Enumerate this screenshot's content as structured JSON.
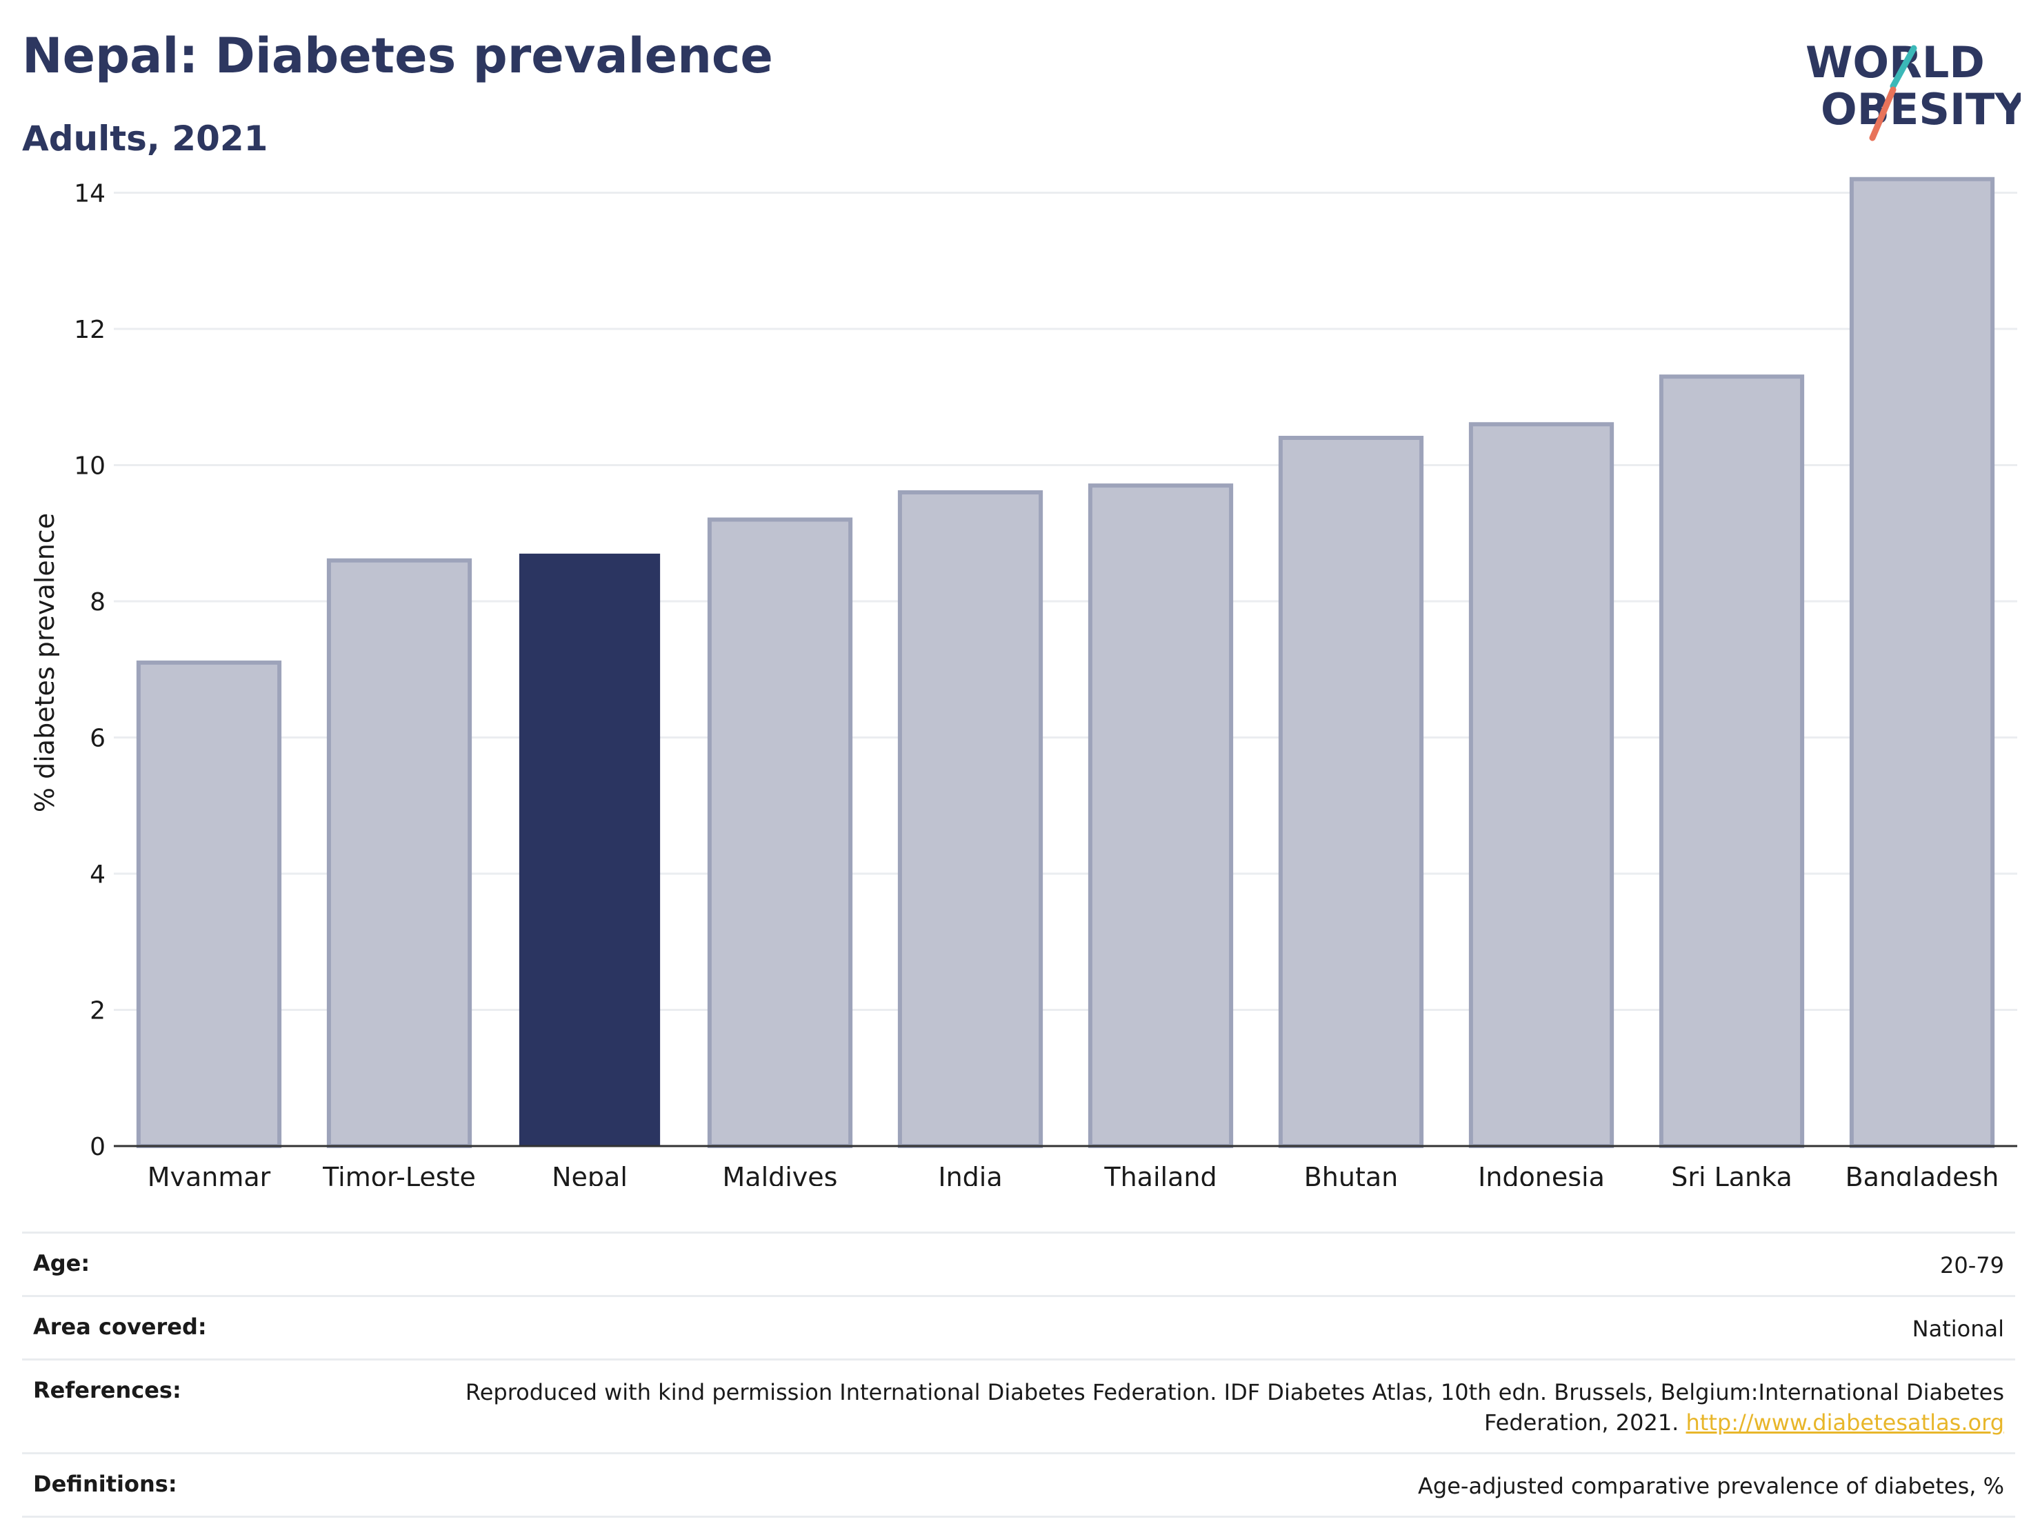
{
  "header": {
    "title": "Nepal: Diabetes prevalence",
    "subtitle": "Adults, 2021"
  },
  "logo": {
    "line1": "WORLD",
    "line2": "OBESITY",
    "colors": {
      "text": "#2d3760",
      "slash_teal": "#3bb8b8",
      "slash_coral": "#e8735a"
    }
  },
  "chart_data": {
    "type": "bar",
    "ylabel": "% diabetes prevalence",
    "xlabel": "",
    "ylim": [
      0,
      14.4
    ],
    "yticks": [
      0,
      2,
      4,
      6,
      8,
      10,
      12,
      14
    ],
    "grid": true,
    "categories": [
      "Myanmar",
      "Timor-Leste",
      "Nepal",
      "Maldives",
      "India",
      "Thailand",
      "Bhutan",
      "Indonesia",
      "Sri Lanka",
      "Bangladesh"
    ],
    "values": [
      7.1,
      8.6,
      8.7,
      9.2,
      9.6,
      9.7,
      10.4,
      10.6,
      11.3,
      14.2
    ],
    "highlight": "Nepal",
    "colors": {
      "highlight": "#2b3561",
      "other_fill": "#bfc2d0",
      "other_stroke": "#9da3ba"
    }
  },
  "details": [
    {
      "label": "Age:",
      "value": "20-79"
    },
    {
      "label": "Area covered:",
      "value": "National"
    },
    {
      "label": "References:",
      "value": "Reproduced with kind permission International Diabetes Federation.  IDF Diabetes Atlas, 10th edn. Brussels, Belgium:International Diabetes Federation, 2021.",
      "link": "http://www.diabetesatlas.org"
    },
    {
      "label": "Definitions:",
      "value": "Age-adjusted comparative prevalence of diabetes, %"
    }
  ]
}
